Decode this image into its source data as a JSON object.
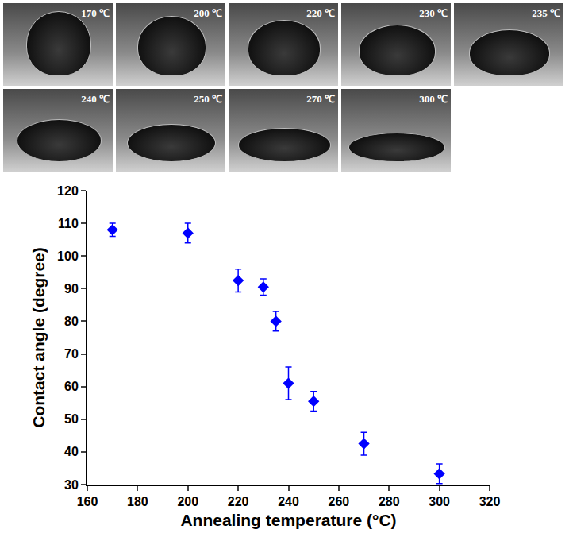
{
  "photos": [
    {
      "label": "170 ℃"
    },
    {
      "label": "200 ℃"
    },
    {
      "label": "220 ℃"
    },
    {
      "label": "230 ℃"
    },
    {
      "label": "235 ℃"
    },
    {
      "label": "240 ℃"
    },
    {
      "label": "250 ℃"
    },
    {
      "label": "270 ℃"
    },
    {
      "label": "300 ℃"
    }
  ],
  "chart_data": {
    "type": "scatter",
    "x_label": "Annealing temperature (°C)",
    "y_label": "Contact angle (degree)",
    "x": [
      170,
      200,
      220,
      230,
      235,
      240,
      250,
      270,
      300
    ],
    "values": [
      108,
      107,
      92.5,
      90.5,
      80,
      61,
      55.5,
      42.5,
      33.3
    ],
    "errors": [
      2,
      3,
      3.5,
      2.5,
      3,
      5,
      3,
      3.5,
      3
    ],
    "color": "#0000ff",
    "marker": "diamond",
    "xlim": [
      160,
      320
    ],
    "xticks": [
      160,
      180,
      200,
      220,
      240,
      260,
      280,
      300,
      320
    ],
    "ylim": [
      30,
      120
    ],
    "yticks": [
      30,
      40,
      50,
      60,
      70,
      80,
      90,
      100,
      110,
      120
    ],
    "grid": false
  }
}
